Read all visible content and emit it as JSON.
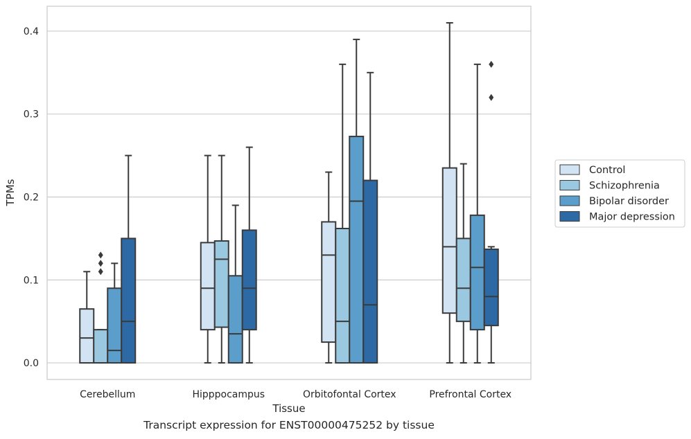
{
  "caption": "Transcript expression for ENST00000475252 by tissue",
  "chart_data": {
    "type": "box",
    "title": "",
    "xlabel": "Tissue",
    "ylabel": "TPMs",
    "ylim": [
      -0.02,
      0.43
    ],
    "yticks": [
      0.0,
      0.1,
      0.2,
      0.3,
      0.4
    ],
    "ytick_labels": [
      "0.0",
      "0.1",
      "0.2",
      "0.3",
      "0.4"
    ],
    "grid": "horizontal",
    "legend_position": "right",
    "categories": [
      "Cerebellum",
      "Hipppocampus",
      "Orbitofontal Cortex",
      "Prefrontal Cortex"
    ],
    "series": [
      {
        "name": "Control",
        "color": "#d2e3f3",
        "boxes": [
          {
            "whislo": 0.0,
            "q1": 0.0,
            "med": 0.03,
            "q3": 0.065,
            "whishi": 0.11,
            "fliers": []
          },
          {
            "whislo": 0.0,
            "q1": 0.04,
            "med": 0.09,
            "q3": 0.145,
            "whishi": 0.25,
            "fliers": []
          },
          {
            "whislo": 0.0,
            "q1": 0.025,
            "med": 0.13,
            "q3": 0.17,
            "whishi": 0.23,
            "fliers": []
          },
          {
            "whislo": 0.0,
            "q1": 0.06,
            "med": 0.14,
            "q3": 0.235,
            "whishi": 0.41,
            "fliers": []
          }
        ]
      },
      {
        "name": "Schizophrenia",
        "color": "#9ac8e0",
        "boxes": [
          {
            "whislo": 0.0,
            "q1": 0.0,
            "med": 0.0,
            "q3": 0.04,
            "whishi": 0.04,
            "fliers": [
              0.11,
              0.12,
              0.13
            ]
          },
          {
            "whislo": 0.0,
            "q1": 0.043,
            "med": 0.125,
            "q3": 0.147,
            "whishi": 0.25,
            "fliers": []
          },
          {
            "whislo": 0.0,
            "q1": 0.0,
            "med": 0.05,
            "q3": 0.162,
            "whishi": 0.36,
            "fliers": []
          },
          {
            "whislo": 0.0,
            "q1": 0.05,
            "med": 0.09,
            "q3": 0.15,
            "whishi": 0.24,
            "fliers": []
          }
        ]
      },
      {
        "name": "Bipolar disorder",
        "color": "#5b9ecb",
        "boxes": [
          {
            "whislo": 0.0,
            "q1": 0.0,
            "med": 0.015,
            "q3": 0.09,
            "whishi": 0.12,
            "fliers": []
          },
          {
            "whislo": 0.0,
            "q1": 0.0,
            "med": 0.035,
            "q3": 0.105,
            "whishi": 0.19,
            "fliers": []
          },
          {
            "whislo": 0.0,
            "q1": 0.0,
            "med": 0.195,
            "q3": 0.273,
            "whishi": 0.39,
            "fliers": []
          },
          {
            "whislo": 0.0,
            "q1": 0.04,
            "med": 0.115,
            "q3": 0.178,
            "whishi": 0.36,
            "fliers": []
          }
        ]
      },
      {
        "name": "Major depression",
        "color": "#2d69a5",
        "boxes": [
          {
            "whislo": 0.0,
            "q1": 0.0,
            "med": 0.05,
            "q3": 0.15,
            "whishi": 0.25,
            "fliers": []
          },
          {
            "whislo": 0.0,
            "q1": 0.04,
            "med": 0.09,
            "q3": 0.16,
            "whishi": 0.26,
            "fliers": []
          },
          {
            "whislo": 0.0,
            "q1": 0.0,
            "med": 0.07,
            "q3": 0.22,
            "whishi": 0.35,
            "fliers": []
          },
          {
            "whislo": 0.0,
            "q1": 0.045,
            "med": 0.08,
            "q3": 0.137,
            "whishi": 0.14,
            "fliers": [
              0.32,
              0.36
            ]
          }
        ]
      }
    ],
    "colors": {
      "grid": "#cccccc",
      "spine": "#cccccc",
      "line": "#3a3a3a",
      "text": "#262626"
    }
  }
}
